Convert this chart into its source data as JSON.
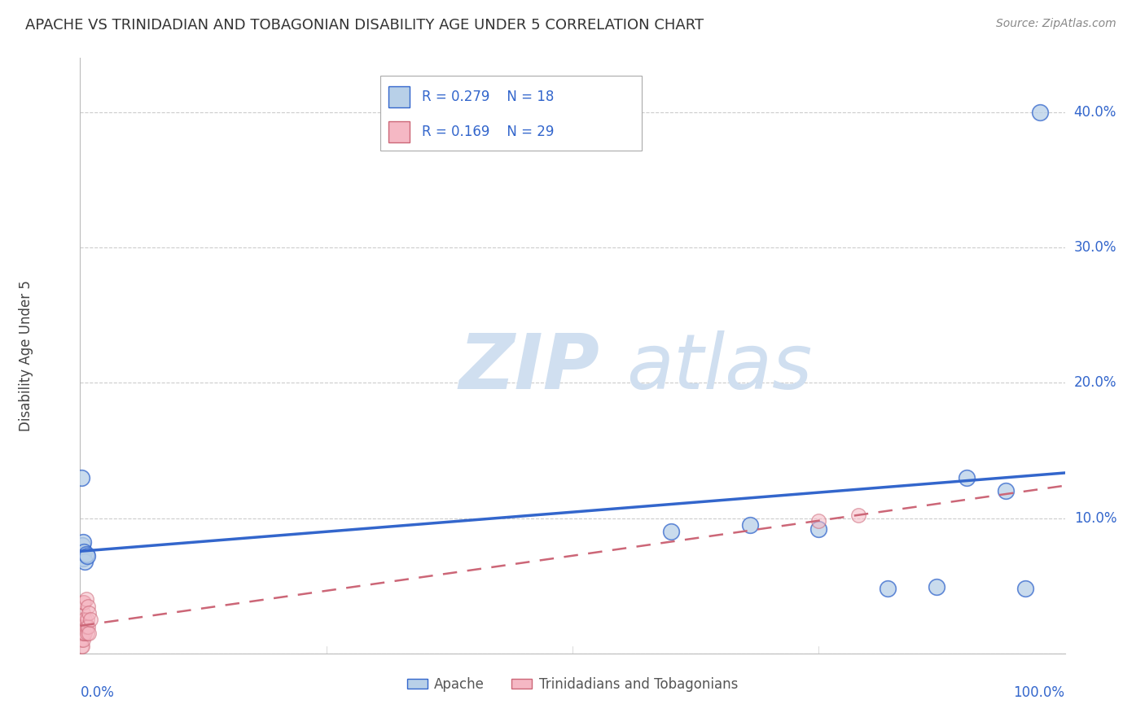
{
  "title": "APACHE VS TRINIDADIAN AND TOBAGONIAN DISABILITY AGE UNDER 5 CORRELATION CHART",
  "source": "Source: ZipAtlas.com",
  "ylabel": "Disability Age Under 5",
  "legend_apache": "Apache",
  "legend_trini": "Trinidadians and Tobagonians",
  "apache_R": "0.279",
  "apache_N": "18",
  "trini_R": "0.169",
  "trini_N": "29",
  "apache_color": "#b8d0e8",
  "trini_color": "#f5b8c4",
  "apache_line_color": "#3366cc",
  "trini_line_color": "#cc6677",
  "background_color": "#ffffff",
  "grid_color": "#cccccc",
  "apache_x": [
    0.001,
    0.002,
    0.002,
    0.003,
    0.003,
    0.004,
    0.005,
    0.006,
    0.007,
    0.6,
    0.68,
    0.75,
    0.82,
    0.87,
    0.9,
    0.94,
    0.96,
    0.975
  ],
  "apache_y": [
    0.13,
    0.08,
    0.073,
    0.082,
    0.07,
    0.075,
    0.068,
    0.073,
    0.072,
    0.09,
    0.095,
    0.092,
    0.048,
    0.049,
    0.13,
    0.12,
    0.048,
    0.4
  ],
  "trini_x": [
    0.0,
    0.0,
    0.001,
    0.001,
    0.001,
    0.001,
    0.002,
    0.002,
    0.002,
    0.002,
    0.003,
    0.003,
    0.003,
    0.003,
    0.004,
    0.004,
    0.005,
    0.005,
    0.006,
    0.006,
    0.007,
    0.007,
    0.008,
    0.008,
    0.009,
    0.009,
    0.01,
    0.75,
    0.79
  ],
  "trini_y": [
    0.01,
    0.02,
    0.005,
    0.01,
    0.015,
    0.022,
    0.005,
    0.015,
    0.02,
    0.025,
    0.01,
    0.02,
    0.03,
    0.038,
    0.015,
    0.038,
    0.015,
    0.025,
    0.02,
    0.04,
    0.015,
    0.025,
    0.02,
    0.035,
    0.015,
    0.03,
    0.025,
    0.098,
    0.102
  ],
  "xlim": [
    0.0,
    1.0
  ],
  "ylim": [
    0.0,
    0.44
  ],
  "ytick_vals": [
    0.0,
    0.1,
    0.2,
    0.3,
    0.4
  ],
  "ytick_labels_right": [
    "",
    "10.0%",
    "20.0%",
    "30.0%",
    "40.0%"
  ],
  "watermark_zip": "ZIP",
  "watermark_atlas": "atlas",
  "watermark_color": "#d0dff0"
}
